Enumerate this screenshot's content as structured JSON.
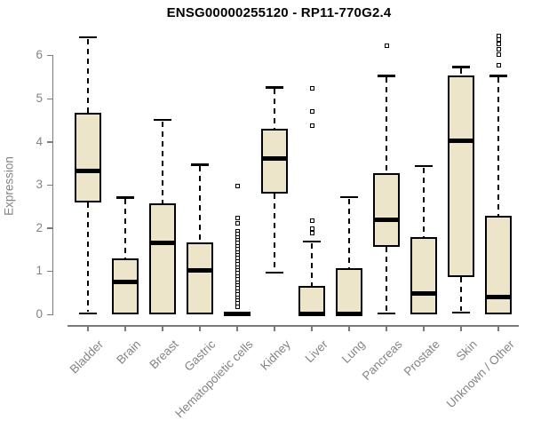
{
  "title": "ENSG00000255120 - RP11-770G2.4",
  "y_axis": {
    "label": "Expression"
  },
  "style": {
    "box_fill": "#EDE5C9",
    "line_color": "#000000",
    "axis_color": "#7A7A7A",
    "text_color": "#848484",
    "title_color": "#000000",
    "background": "#FFFFFF"
  },
  "chart_data": {
    "type": "boxplot",
    "title": "ENSG00000255120 - RP11-770G2.4",
    "xlabel": "",
    "ylabel": "Expression",
    "ylim": [
      0,
      6.5
    ],
    "yticks": [
      0,
      1,
      2,
      3,
      4,
      5,
      6
    ],
    "grid": false,
    "legend": "none",
    "categories": [
      "Bladder",
      "Brain",
      "Breast",
      "Gastric",
      "Hematopoietic cells",
      "Kidney",
      "Liver",
      "Lung",
      "Pancreas",
      "Prostate",
      "Skin",
      "Unknown / Other"
    ],
    "series": [
      {
        "name": "Bladder",
        "whisker_low": 0.03,
        "q1": 2.6,
        "median": 3.32,
        "q3": 4.68,
        "whisker_high": 6.43,
        "outliers": []
      },
      {
        "name": "Brain",
        "whisker_low": 0.01,
        "q1": 0.01,
        "median": 0.76,
        "q3": 1.29,
        "whisker_high": 2.71,
        "outliers": []
      },
      {
        "name": "Breast",
        "whisker_low": 0.01,
        "q1": 0.01,
        "median": 1.66,
        "q3": 2.58,
        "whisker_high": 4.51,
        "outliers": []
      },
      {
        "name": "Gastric",
        "whisker_low": 0.01,
        "q1": 0.01,
        "median": 1.02,
        "q3": 1.66,
        "whisker_high": 3.47,
        "outliers": []
      },
      {
        "name": "Hematopoietic cells",
        "whisker_low": 0.0,
        "q1": 0.0,
        "median": 0.01,
        "q3": 0.04,
        "whisker_high": 0.04,
        "outliers": [
          2.98,
          2.24,
          2.1,
          1.93,
          1.86,
          1.79,
          1.72,
          1.65,
          1.58,
          1.51,
          1.44,
          1.37,
          1.3,
          1.23,
          1.16,
          1.09,
          1.02,
          0.95,
          0.88,
          0.81,
          0.74,
          0.67,
          0.6,
          0.53,
          0.46,
          0.39,
          0.32,
          0.25,
          0.18
        ]
      },
      {
        "name": "Kidney",
        "whisker_low": 0.97,
        "q1": 2.79,
        "median": 3.61,
        "q3": 4.3,
        "whisker_high": 5.26,
        "outliers": []
      },
      {
        "name": "Liver",
        "whisker_low": 0.01,
        "q1": 0.01,
        "median": 0.02,
        "q3": 0.66,
        "whisker_high": 1.69,
        "outliers": [
          5.23,
          4.71,
          4.37,
          2.17,
          1.99,
          1.89
        ]
      },
      {
        "name": "Lung",
        "whisker_low": 0.01,
        "q1": 0.01,
        "median": 0.02,
        "q3": 1.06,
        "whisker_high": 2.72,
        "outliers": []
      },
      {
        "name": "Pancreas",
        "whisker_low": 0.03,
        "q1": 1.56,
        "median": 2.19,
        "q3": 3.27,
        "whisker_high": 5.53,
        "outliers": [
          6.22
        ]
      },
      {
        "name": "Prostate",
        "whisker_low": 0.01,
        "q1": 0.01,
        "median": 0.48,
        "q3": 1.8,
        "whisker_high": 3.44,
        "outliers": []
      },
      {
        "name": "Skin",
        "whisker_low": 0.05,
        "q1": 0.87,
        "median": 4.03,
        "q3": 5.53,
        "whisker_high": 5.74,
        "outliers": []
      },
      {
        "name": "Unknown / Other",
        "whisker_low": 0.01,
        "q1": 0.01,
        "median": 0.41,
        "q3": 2.28,
        "whisker_high": 5.53,
        "outliers": [
          6.46,
          6.36,
          6.26,
          6.15,
          6.01,
          5.78
        ]
      }
    ]
  }
}
